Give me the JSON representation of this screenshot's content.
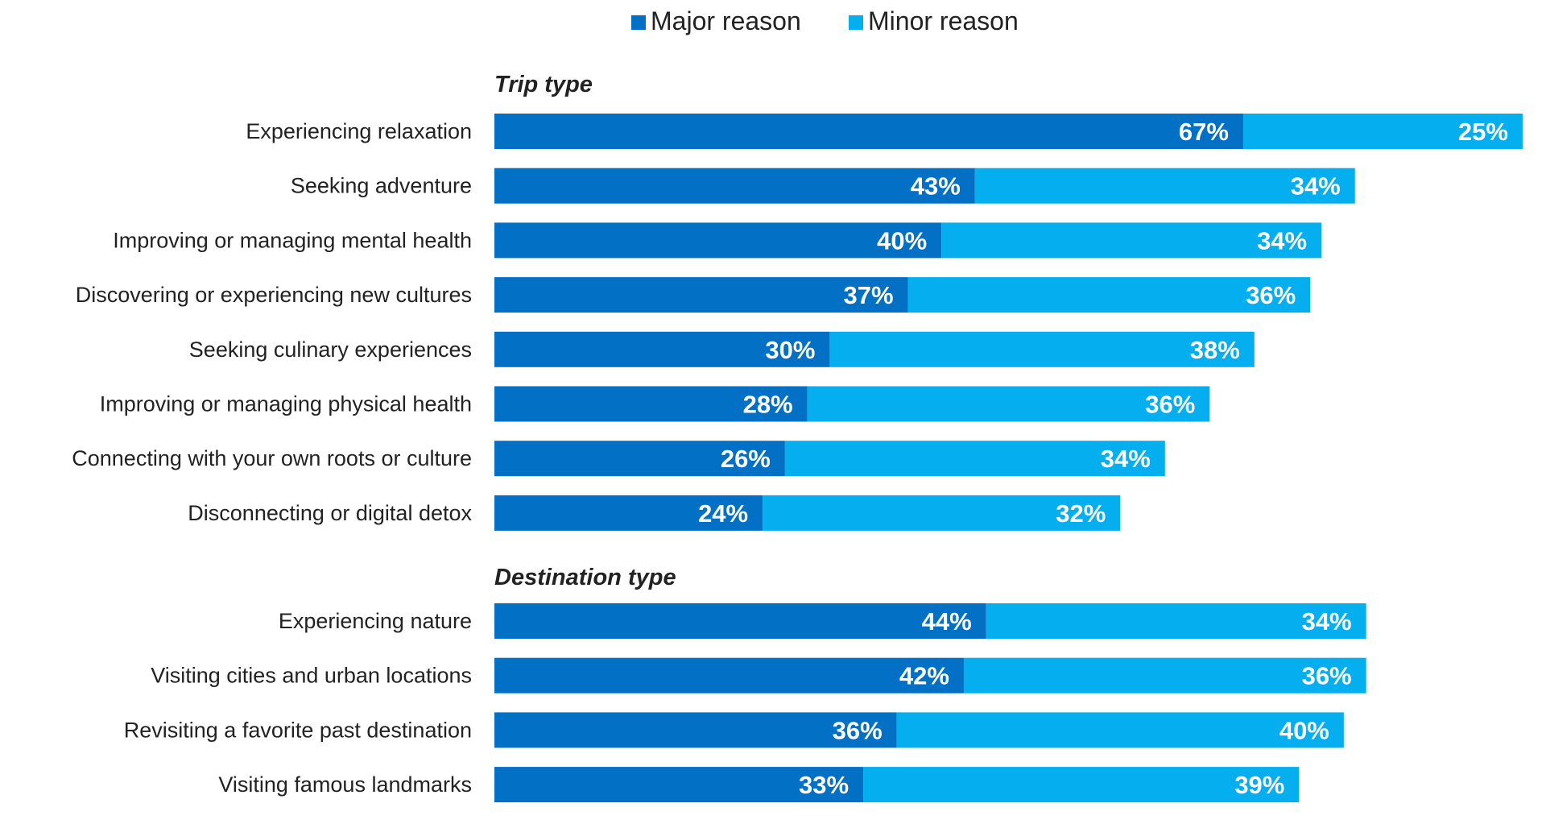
{
  "colors": {
    "major": "#0270c5",
    "minor": "#04aeef",
    "text": "#222222",
    "value_label": "#ffffff"
  },
  "chart_data": {
    "type": "bar",
    "orientation": "horizontal",
    "stacked": true,
    "legend": {
      "placement": "top-center",
      "entries": [
        "Major reason",
        "Minor reason"
      ]
    },
    "xlim": [
      0,
      92
    ],
    "series": [
      {
        "name": "Major reason",
        "color": "#0270c5"
      },
      {
        "name": "Minor reason",
        "color": "#04aeef"
      }
    ],
    "groups": [
      {
        "title": "Trip type",
        "items": [
          {
            "label": "Experiencing relaxation",
            "major": 67,
            "minor": 25,
            "major_label": "67%",
            "minor_label": "25%"
          },
          {
            "label": "Seeking adventure",
            "major": 43,
            "minor": 34,
            "major_label": "43%",
            "minor_label": "34%"
          },
          {
            "label": "Improving or managing mental health",
            "major": 40,
            "minor": 34,
            "major_label": "40%",
            "minor_label": "34%"
          },
          {
            "label": "Discovering or experiencing new cultures",
            "major": 37,
            "minor": 36,
            "major_label": "37%",
            "minor_label": "36%"
          },
          {
            "label": "Seeking culinary experiences",
            "major": 30,
            "minor": 38,
            "major_label": "30%",
            "minor_label": "38%"
          },
          {
            "label": "Improving or managing physical health",
            "major": 28,
            "minor": 36,
            "major_label": "28%",
            "minor_label": "36%"
          },
          {
            "label": "Connecting with your own roots or culture",
            "major": 26,
            "minor": 34,
            "major_label": "26%",
            "minor_label": "34%"
          },
          {
            "label": "Disconnecting or digital detox",
            "major": 24,
            "minor": 32,
            "major_label": "24%",
            "minor_label": "32%"
          }
        ]
      },
      {
        "title": "Destination type",
        "items": [
          {
            "label": "Experiencing nature",
            "major": 44,
            "minor": 34,
            "major_label": "44%",
            "minor_label": "34%"
          },
          {
            "label": "Visiting cities and urban locations",
            "major": 42,
            "minor": 36,
            "major_label": "42%",
            "minor_label": "36%"
          },
          {
            "label": "Revisiting a favorite past destination",
            "major": 36,
            "minor": 40,
            "major_label": "36%",
            "minor_label": "40%"
          },
          {
            "label": "Visiting famous landmarks",
            "major": 33,
            "minor": 39,
            "major_label": "33%",
            "minor_label": "39%"
          }
        ]
      }
    ]
  }
}
